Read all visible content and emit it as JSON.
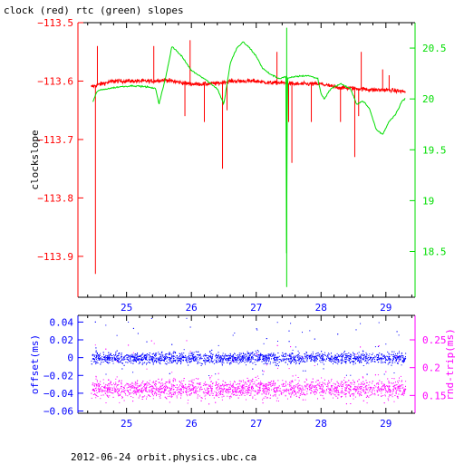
{
  "title": "clock (red) rtc (green) slopes",
  "footer": "2012-06-24 orbit.physics.ubc.ca",
  "colors": {
    "red": "#ff0000",
    "green": "#00dd00",
    "blue": "#0000ff",
    "magenta": "#ff00ff",
    "axis": "#000000"
  },
  "chart_data": [
    {
      "type": "line",
      "ylabel": "clockslope",
      "y2label": "",
      "xlim": [
        24.25,
        29.45
      ],
      "ylim": [
        -113.97,
        -113.5
      ],
      "y2lim": [
        18.05,
        20.75
      ],
      "x_ticks": [
        25,
        26,
        27,
        28,
        29
      ],
      "y_ticks": [
        -113.5,
        -113.6,
        -113.7,
        -113.8,
        -113.9
      ],
      "y_tick_labels": [
        "−113.5",
        "−113.6",
        "−113.7",
        "−113.8",
        "−113.9"
      ],
      "y2_ticks": [
        20.5,
        20,
        19.5,
        19,
        18.5
      ],
      "y2_tick_labels": [
        "20.5",
        "20",
        "19.5",
        "19",
        "18.5"
      ],
      "grid": false,
      "series": [
        {
          "axis": "left",
          "color": "#ff0000",
          "x": [
            24.45,
            24.6,
            24.8,
            25.0,
            25.2,
            25.4,
            25.6,
            25.8,
            26.0,
            26.2,
            26.4,
            26.6,
            26.8,
            27.0,
            27.2,
            27.4,
            27.6,
            27.8,
            28.0,
            28.2,
            28.4,
            28.6,
            28.8,
            29.0,
            29.2,
            29.3
          ],
          "y": [
            -113.61,
            -113.605,
            -113.6,
            -113.6,
            -113.6,
            -113.6,
            -113.598,
            -113.602,
            -113.605,
            -113.605,
            -113.604,
            -113.6,
            -113.6,
            -113.6,
            -113.603,
            -113.603,
            -113.605,
            -113.605,
            -113.605,
            -113.61,
            -113.612,
            -113.613,
            -113.615,
            -113.615,
            -113.617,
            -113.618
          ],
          "spikes": [
            {
              "x": 24.52,
              "y": -113.93
            },
            {
              "x": 24.55,
              "y": -113.54
            },
            {
              "x": 25.42,
              "y": -113.54
            },
            {
              "x": 25.9,
              "y": -113.66
            },
            {
              "x": 25.98,
              "y": -113.53
            },
            {
              "x": 26.2,
              "y": -113.67
            },
            {
              "x": 26.48,
              "y": -113.75
            },
            {
              "x": 26.55,
              "y": -113.65
            },
            {
              "x": 27.32,
              "y": -113.55
            },
            {
              "x": 27.48,
              "y": -113.6
            },
            {
              "x": 27.5,
              "y": -113.67
            },
            {
              "x": 27.55,
              "y": -113.74
            },
            {
              "x": 27.85,
              "y": -113.67
            },
            {
              "x": 28.3,
              "y": -113.67
            },
            {
              "x": 28.52,
              "y": -113.73
            },
            {
              "x": 28.58,
              "y": -113.66
            },
            {
              "x": 28.62,
              "y": -113.55
            },
            {
              "x": 28.95,
              "y": -113.58
            },
            {
              "x": 29.05,
              "y": -113.59
            }
          ]
        },
        {
          "axis": "right",
          "color": "#00dd00",
          "x": [
            24.48,
            24.55,
            24.7,
            24.9,
            25.1,
            25.3,
            25.45,
            25.5,
            25.6,
            25.7,
            25.85,
            26.0,
            26.2,
            26.4,
            26.5,
            26.6,
            26.7,
            26.8,
            26.9,
            27.0,
            27.1,
            27.2,
            27.35,
            27.46,
            27.47,
            27.48,
            27.6,
            27.8,
            27.95,
            28.0,
            28.05,
            28.15,
            28.3,
            28.45,
            28.55,
            28.65,
            28.75,
            28.85,
            28.95,
            29.05,
            29.15,
            29.25,
            29.3
          ],
          "y": [
            19.97,
            20.08,
            20.1,
            20.12,
            20.13,
            20.12,
            20.1,
            19.95,
            20.2,
            20.52,
            20.42,
            20.28,
            20.2,
            20.1,
            19.95,
            20.35,
            20.5,
            20.56,
            20.5,
            20.42,
            20.3,
            20.25,
            20.2,
            20.22,
            18.15,
            20.2,
            20.22,
            20.23,
            20.2,
            20.05,
            20.0,
            20.1,
            20.15,
            20.1,
            19.95,
            19.98,
            19.9,
            19.7,
            19.65,
            19.78,
            19.85,
            19.98,
            20.0
          ]
        }
      ]
    },
    {
      "type": "scatter",
      "ylabel": "offset(ms)",
      "y2label": "rnd-trip(ms)",
      "xlim": [
        24.25,
        29.45
      ],
      "ylim": [
        -0.0625,
        0.0475
      ],
      "y2lim": [
        0.118,
        0.294
      ],
      "x_ticks": [
        25,
        26,
        27,
        28,
        29
      ],
      "y_ticks": [
        0.04,
        0.02,
        0,
        -0.02,
        -0.04,
        -0.06
      ],
      "y_tick_labels": [
        "0.04",
        "0.02",
        "0",
        "−0.02",
        "−0.04",
        "−0.06"
      ],
      "y2_ticks": [
        0.25,
        0.2,
        0.15
      ],
      "y2_tick_labels": [
        "0.25",
        "0.2",
        "0.15"
      ],
      "grid": false,
      "series": [
        {
          "axis": "left",
          "color": "#0000ff",
          "x_range": [
            24.45,
            29.3
          ],
          "center": 0.0,
          "band": 0.007,
          "outlier_max": 0.045,
          "outlier_min": -0.02
        },
        {
          "axis": "right",
          "color": "#ff00ff",
          "x_range": [
            24.45,
            29.3
          ],
          "center": 0.163,
          "band": 0.018,
          "outlier_max": 0.25,
          "outlier_min": 0.135
        }
      ]
    }
  ]
}
